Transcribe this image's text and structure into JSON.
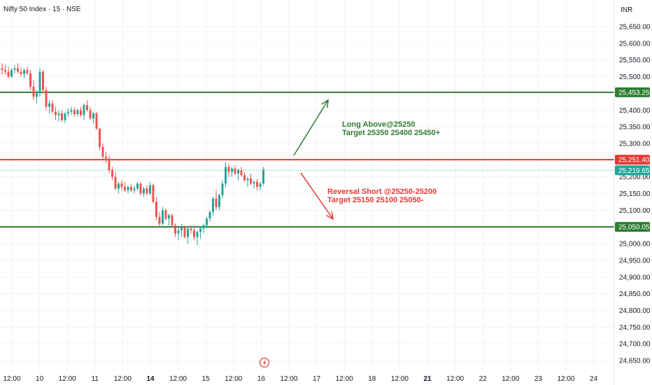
{
  "header": {
    "symbol_title": "Nifty 50 Index · 15 · NSE"
  },
  "currency": "INR",
  "chart_data": {
    "type": "candlestick",
    "title": "Nifty 50 Index · 15 · NSE",
    "ylim": [
      24620,
      25700
    ],
    "y_ticks": [
      {
        "value": 25650,
        "label": "25,650.00"
      },
      {
        "value": 25600,
        "label": "25,600.00"
      },
      {
        "value": 25550,
        "label": "25,550.00"
      },
      {
        "value": 25500,
        "label": "25,500.00"
      },
      {
        "value": 25400,
        "label": "25,400.00"
      },
      {
        "value": 25350,
        "label": "25,350.00"
      },
      {
        "value": 25300,
        "label": "25,300.00"
      },
      {
        "value": 25200,
        "label": "25,200.00"
      },
      {
        "value": 25150,
        "label": "25,150.00"
      },
      {
        "value": 25100,
        "label": "25,100.00"
      },
      {
        "value": 25000,
        "label": "25,000.00"
      },
      {
        "value": 24950,
        "label": "24,950.00"
      },
      {
        "value": 24900,
        "label": "24,900.00"
      },
      {
        "value": 24850,
        "label": "24,850.00"
      },
      {
        "value": 24800,
        "label": "24,800.00"
      },
      {
        "value": 24750,
        "label": "24,750.00"
      },
      {
        "value": 24700,
        "label": "24,700.00"
      },
      {
        "value": 24650,
        "label": "24,650.00"
      }
    ],
    "x_ticks": [
      {
        "label": "12:00",
        "bold": false
      },
      {
        "label": "10",
        "bold": false
      },
      {
        "label": "12:00",
        "bold": false
      },
      {
        "label": "11",
        "bold": false
      },
      {
        "label": "12:00",
        "bold": false
      },
      {
        "label": "14",
        "bold": true
      },
      {
        "label": "12:00",
        "bold": false
      },
      {
        "label": "15",
        "bold": false
      },
      {
        "label": "12:00",
        "bold": false
      },
      {
        "label": "16",
        "bold": false
      },
      {
        "label": "12:00",
        "bold": false
      },
      {
        "label": "17",
        "bold": false
      },
      {
        "label": "12:00",
        "bold": false
      },
      {
        "label": "18",
        "bold": false
      },
      {
        "label": "12:00",
        "bold": false
      },
      {
        "label": "21",
        "bold": true
      },
      {
        "label": "12:00",
        "bold": false
      },
      {
        "label": "22",
        "bold": false
      },
      {
        "label": "12:00",
        "bold": false
      },
      {
        "label": "23",
        "bold": false
      },
      {
        "label": "12:00",
        "bold": false
      },
      {
        "label": "24",
        "bold": false
      }
    ],
    "ohlc_approx": [
      [
        25525,
        25540,
        25505,
        25520
      ],
      [
        25520,
        25535,
        25505,
        25515
      ],
      [
        25515,
        25530,
        25495,
        25500
      ],
      [
        25500,
        25525,
        25495,
        25520
      ],
      [
        25520,
        25535,
        25510,
        25525
      ],
      [
        25525,
        25540,
        25510,
        25515
      ],
      [
        25515,
        25528,
        25500,
        25508
      ],
      [
        25508,
        25525,
        25495,
        25520
      ],
      [
        25520,
        25530,
        25505,
        25510
      ],
      [
        25510,
        25520,
        25460,
        25470
      ],
      [
        25470,
        25490,
        25430,
        25440
      ],
      [
        25440,
        25460,
        25420,
        25450
      ],
      [
        25450,
        25525,
        25440,
        25515
      ],
      [
        25515,
        25520,
        25450,
        25460
      ],
      [
        25460,
        25470,
        25400,
        25410
      ],
      [
        25410,
        25430,
        25390,
        25420
      ],
      [
        25420,
        25430,
        25390,
        25395
      ],
      [
        25395,
        25410,
        25370,
        25385
      ],
      [
        25385,
        25400,
        25365,
        25390
      ],
      [
        25390,
        25400,
        25365,
        25370
      ],
      [
        25370,
        25395,
        25360,
        25390
      ],
      [
        25390,
        25405,
        25380,
        25395
      ],
      [
        25395,
        25410,
        25385,
        25400
      ],
      [
        25400,
        25408,
        25380,
        25388
      ],
      [
        25388,
        25405,
        25380,
        25400
      ],
      [
        25400,
        25410,
        25380,
        25385
      ],
      [
        25385,
        25420,
        25370,
        25415
      ],
      [
        25415,
        25430,
        25395,
        25400
      ],
      [
        25400,
        25410,
        25370,
        25375
      ],
      [
        25375,
        25395,
        25360,
        25390
      ],
      [
        25390,
        25395,
        25340,
        25345
      ],
      [
        25345,
        25330,
        25280,
        25290
      ],
      [
        25290,
        25300,
        25250,
        25260
      ],
      [
        25260,
        25275,
        25240,
        25255
      ],
      [
        25255,
        25265,
        25210,
        25220
      ],
      [
        25220,
        25230,
        25190,
        25200
      ],
      [
        25200,
        25215,
        25160,
        25165
      ],
      [
        25165,
        25185,
        25150,
        25180
      ],
      [
        25180,
        25190,
        25160,
        25170
      ],
      [
        25170,
        25185,
        25155,
        25160
      ],
      [
        25160,
        25175,
        25150,
        25170
      ],
      [
        25170,
        25180,
        25155,
        25160
      ],
      [
        25160,
        25175,
        25150,
        25165
      ],
      [
        25165,
        25185,
        25160,
        25180
      ],
      [
        25180,
        25185,
        25145,
        25150
      ],
      [
        25150,
        25170,
        25140,
        25165
      ],
      [
        25165,
        25175,
        25145,
        25150
      ],
      [
        25150,
        25185,
        25145,
        25175
      ],
      [
        25175,
        25180,
        25120,
        25125
      ],
      [
        25125,
        25140,
        25070,
        25080
      ],
      [
        25080,
        25095,
        25050,
        25060
      ],
      [
        25060,
        25110,
        25055,
        25100
      ],
      [
        25100,
        25105,
        25070,
        25075
      ],
      [
        25075,
        25090,
        25055,
        25085
      ],
      [
        25085,
        25090,
        25050,
        25055
      ],
      [
        25055,
        25060,
        25020,
        25030
      ],
      [
        25030,
        25050,
        25010,
        25040
      ],
      [
        25040,
        25060,
        25020,
        25050
      ],
      [
        25050,
        25055,
        25015,
        25020
      ],
      [
        25020,
        25050,
        25000,
        25045
      ],
      [
        25045,
        25055,
        25030,
        25040
      ],
      [
        25040,
        25055,
        25010,
        25020
      ],
      [
        25020,
        25040,
        24995,
        25035
      ],
      [
        25035,
        25050,
        25015,
        25045
      ],
      [
        25045,
        25060,
        25030,
        25055
      ],
      [
        25055,
        25080,
        25045,
        25075
      ],
      [
        25075,
        25100,
        25065,
        25095
      ],
      [
        25095,
        25140,
        25085,
        25135
      ],
      [
        25135,
        25160,
        25100,
        25110
      ],
      [
        25110,
        25150,
        25100,
        25145
      ],
      [
        25145,
        25190,
        25135,
        25180
      ],
      [
        25180,
        25245,
        25170,
        25230
      ],
      [
        25230,
        25240,
        25200,
        25215
      ],
      [
        25215,
        25230,
        25200,
        25225
      ],
      [
        25225,
        25235,
        25205,
        25210
      ],
      [
        25210,
        25225,
        25190,
        25220
      ],
      [
        25220,
        25230,
        25200,
        25205
      ],
      [
        25205,
        25215,
        25185,
        25190
      ],
      [
        25190,
        25200,
        25170,
        25195
      ],
      [
        25195,
        25210,
        25175,
        25180
      ],
      [
        25180,
        25190,
        25165,
        25185
      ],
      [
        25185,
        25195,
        25160,
        25170
      ],
      [
        25170,
        25185,
        25160,
        25180
      ],
      [
        25180,
        25230,
        25175,
        25222
      ]
    ],
    "levels": [
      {
        "value": 25453.25,
        "label": "25,453.25",
        "color": "#2e7d32"
      },
      {
        "value": 25251.4,
        "label": "25,251.40",
        "color": "#e53935"
      },
      {
        "value": 25050.05,
        "label": "25,050.05",
        "color": "#2e7d32"
      }
    ],
    "last_price": {
      "value": 25219.65,
      "label": "25,219.65",
      "color": "#26a69a"
    },
    "annotations": [
      {
        "lines": [
          "Long  Above@25250",
          "Target 25350 25400 25450+"
        ],
        "color": "#2e7d32"
      },
      {
        "lines": [
          "Reversal Short @25250-25200",
          "Target 25150 25100 25050-"
        ],
        "color": "#e53935"
      }
    ],
    "colors": {
      "up": "#26a69a",
      "down": "#ef5350",
      "grid": "#f0f3fa",
      "axis_text": "#131722"
    }
  }
}
